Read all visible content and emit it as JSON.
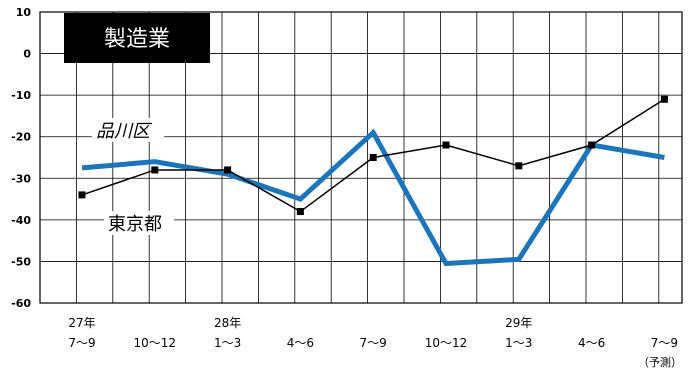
{
  "chart_data": {
    "type": "line",
    "title": "製造業",
    "ylim": [
      -60,
      10
    ],
    "yticks": [
      10,
      0,
      -10,
      -20,
      -30,
      -40,
      -50,
      -60
    ],
    "grid": true,
    "x_labels": [
      {
        "year": "27年",
        "period": "7〜9"
      },
      {
        "year": "",
        "period": "10〜12"
      },
      {
        "year": "28年",
        "period": "1〜3"
      },
      {
        "year": "",
        "period": "4〜6"
      },
      {
        "year": "",
        "period": "7〜9"
      },
      {
        "year": "",
        "period": "10〜12"
      },
      {
        "year": "29年",
        "period": "1〜3"
      },
      {
        "year": "",
        "period": "4〜6"
      },
      {
        "year": "",
        "period": "7〜9"
      }
    ],
    "forecast_note": "（予測）",
    "series": [
      {
        "name": "品川区",
        "color": "#1b75bb",
        "style": "thick",
        "values": [
          -27.5,
          -26,
          -29,
          -35,
          -19,
          -50.5,
          -49.5,
          -22,
          -25
        ]
      },
      {
        "name": "東京都",
        "color": "#000000",
        "style": "thin-square-markers",
        "values": [
          -34,
          -28,
          -28,
          -38,
          -25,
          -22,
          -27,
          -22,
          -11
        ]
      }
    ]
  }
}
